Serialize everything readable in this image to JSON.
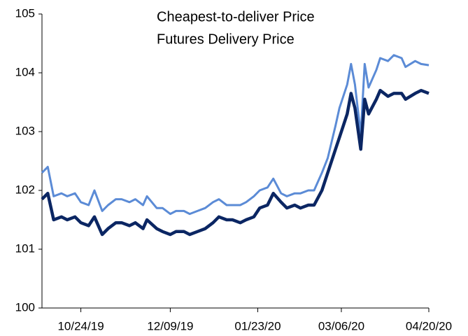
{
  "chart_data": {
    "type": "line",
    "x": [
      "10/04/19",
      "10/07/19",
      "10/10/19",
      "10/14/19",
      "10/17/19",
      "10/21/19",
      "10/24/19",
      "10/28/19",
      "10/31/19",
      "11/04/19",
      "11/07/19",
      "11/11/19",
      "11/14/19",
      "11/18/19",
      "11/21/19",
      "11/25/19",
      "11/27/19",
      "12/02/19",
      "12/05/19",
      "12/09/19",
      "12/12/19",
      "12/16/19",
      "12/19/19",
      "12/23/19",
      "12/27/19",
      "12/31/19",
      "01/03/20",
      "01/07/20",
      "01/10/20",
      "01/14/20",
      "01/17/20",
      "01/21/20",
      "01/24/20",
      "01/28/20",
      "01/31/20",
      "02/04/20",
      "02/07/20",
      "02/11/20",
      "02/14/20",
      "02/18/20",
      "02/21/20",
      "02/25/20",
      "02/28/20",
      "03/03/20",
      "03/05/20",
      "03/09/20",
      "03/11/20",
      "03/13/20",
      "03/16/20",
      "03/18/20",
      "03/20/20",
      "03/24/20",
      "03/26/20",
      "03/30/20",
      "04/02/20",
      "04/06/20",
      "04/08/20",
      "04/13/20",
      "04/16/20",
      "04/20/20"
    ],
    "series": [
      {
        "name": "Cheapest-to-deliver Price",
        "color": "#0b2663",
        "values": [
          101.85,
          101.95,
          101.5,
          101.55,
          101.5,
          101.55,
          101.45,
          101.4,
          101.55,
          101.25,
          101.35,
          101.45,
          101.45,
          101.4,
          101.45,
          101.35,
          101.5,
          101.35,
          101.3,
          101.25,
          101.3,
          101.3,
          101.25,
          101.3,
          101.35,
          101.45,
          101.55,
          101.5,
          101.5,
          101.45,
          101.5,
          101.55,
          101.7,
          101.75,
          101.95,
          101.8,
          101.7,
          101.75,
          101.7,
          101.75,
          101.75,
          102.0,
          102.3,
          102.7,
          102.9,
          103.3,
          103.65,
          103.4,
          102.7,
          103.55,
          103.3,
          103.55,
          103.7,
          103.6,
          103.65,
          103.65,
          103.55,
          103.65,
          103.7,
          103.65
        ]
      },
      {
        "name": "Futures Delivery Price",
        "color": "#5b8bd6",
        "values": [
          102.3,
          102.4,
          101.9,
          101.95,
          101.9,
          101.95,
          101.8,
          101.75,
          102.0,
          101.65,
          101.75,
          101.85,
          101.85,
          101.8,
          101.85,
          101.75,
          101.9,
          101.7,
          101.7,
          101.6,
          101.65,
          101.65,
          101.6,
          101.65,
          101.7,
          101.8,
          101.85,
          101.75,
          101.75,
          101.75,
          101.8,
          101.9,
          102.0,
          102.05,
          102.2,
          101.95,
          101.9,
          101.95,
          101.95,
          102.0,
          102.0,
          102.3,
          102.55,
          103.1,
          103.4,
          103.8,
          104.15,
          103.8,
          102.95,
          104.15,
          103.75,
          104.05,
          104.25,
          104.2,
          104.3,
          104.25,
          104.1,
          104.2,
          104.15,
          104.13
        ]
      }
    ],
    "xlim": [
      "10/04/19",
      "04/20/20"
    ],
    "xticks": [
      "10/24/19",
      "12/09/19",
      "01/23/20",
      "03/06/20",
      "04/20/20"
    ],
    "ylim": [
      100,
      105
    ],
    "yticks": [
      100,
      101,
      102,
      103,
      104,
      105
    ],
    "grid": false
  }
}
